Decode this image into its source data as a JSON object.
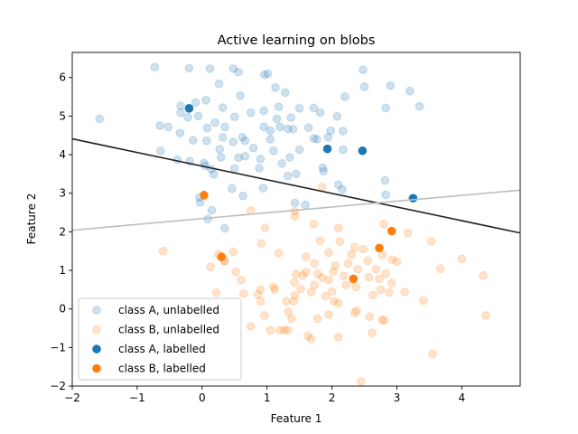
{
  "chart_data": {
    "type": "scatter",
    "title": "Active learning on blobs",
    "xlabel": "Feature 1",
    "ylabel": "Feature 2",
    "xlim": [
      -2,
      4.9
    ],
    "ylim": [
      -2,
      6.65
    ],
    "xticks": [
      -2,
      -1,
      0,
      1,
      2,
      3,
      4
    ],
    "yticks": [
      -2,
      -1,
      0,
      1,
      2,
      3,
      4,
      5,
      6
    ],
    "grid": false,
    "legend_position": "lower-left",
    "series": [
      {
        "name": "class A, unlabelled",
        "color": "#1f77b4",
        "alpha": 0.22,
        "points": [
          [
            -1.58,
            4.93
          ],
          [
            -0.73,
            6.27
          ],
          [
            -0.2,
            6.24
          ],
          [
            0.12,
            6.23
          ],
          [
            0.48,
            6.23
          ],
          [
            0.56,
            6.14
          ],
          [
            0.96,
            6.07
          ],
          [
            1.01,
            6.1
          ],
          [
            2.48,
            6.2
          ],
          [
            2.5,
            5.76
          ],
          [
            2.9,
            5.79
          ],
          [
            3.2,
            5.65
          ],
          [
            3.35,
            5.25
          ],
          [
            2.83,
            5.21
          ],
          [
            0.26,
            5.84
          ],
          [
            0.59,
            5.53
          ],
          [
            1.13,
            5.74
          ],
          [
            1.28,
            5.61
          ],
          [
            2.2,
            5.5
          ],
          [
            -0.33,
            5.27
          ],
          [
            -0.1,
            5.35
          ],
          [
            0.06,
            5.41
          ],
          [
            0.32,
            5.22
          ],
          [
            0.75,
            5.09
          ],
          [
            0.95,
            5.14
          ],
          [
            1.18,
            5.24
          ],
          [
            1.5,
            5.2
          ],
          [
            1.72,
            5.21
          ],
          [
            1.82,
            5.09
          ],
          [
            2.08,
            4.99
          ],
          [
            -0.33,
            5.09
          ],
          [
            -0.22,
            4.97
          ],
          [
            -0.06,
            5.0
          ],
          [
            0.2,
            4.83
          ],
          [
            0.5,
            4.98
          ],
          [
            1.15,
            4.93
          ],
          [
            1.37,
            4.96
          ],
          [
            -0.65,
            4.75
          ],
          [
            -0.52,
            4.72
          ],
          [
            0.08,
            4.69
          ],
          [
            0.35,
            4.72
          ],
          [
            0.62,
            4.45
          ],
          [
            0.95,
            4.72
          ],
          [
            1.05,
            4.62
          ],
          [
            1.2,
            4.72
          ],
          [
            1.4,
            4.66
          ],
          [
            1.64,
            4.7
          ],
          [
            1.77,
            4.4
          ],
          [
            1.98,
            4.62
          ],
          [
            2.17,
            4.61
          ],
          [
            -0.14,
            4.37
          ],
          [
            0.07,
            4.36
          ],
          [
            0.32,
            4.45
          ],
          [
            0.48,
            4.33
          ],
          [
            0.66,
            4.36
          ],
          [
            1.05,
            4.4
          ],
          [
            1.32,
            4.67
          ],
          [
            1.72,
            4.42
          ],
          [
            1.94,
            4.45
          ],
          [
            -0.34,
            4.56
          ],
          [
            0.27,
            4.14
          ],
          [
            0.29,
            3.93
          ],
          [
            0.03,
            3.78
          ],
          [
            0.66,
            3.96
          ],
          [
            0.9,
            3.89
          ],
          [
            1.1,
            4.1
          ],
          [
            1.35,
            3.93
          ],
          [
            1.5,
            4.13
          ],
          [
            2.17,
            4.13
          ],
          [
            -0.64,
            4.1
          ],
          [
            0.56,
            3.92
          ],
          [
            0.79,
            4.17
          ],
          [
            -0.38,
            3.87
          ],
          [
            -0.19,
            3.83
          ],
          [
            0.05,
            3.71
          ],
          [
            0.14,
            3.62
          ],
          [
            0.18,
            3.49
          ],
          [
            0.5,
            3.64
          ],
          [
            0.88,
            3.65
          ],
          [
            1.23,
            3.77
          ],
          [
            1.86,
            3.66
          ],
          [
            1.87,
            3.57
          ],
          [
            1.32,
            3.45
          ],
          [
            0.46,
            3.12
          ],
          [
            0.63,
            2.93
          ],
          [
            0.94,
            3.13
          ],
          [
            1.45,
            3.5
          ],
          [
            2.1,
            3.22
          ],
          [
            2.16,
            3.1
          ],
          [
            2.82,
            3.33
          ],
          [
            2.83,
            2.96
          ],
          [
            1.43,
            2.75
          ],
          [
            1.59,
            2.7
          ],
          [
            -0.04,
            2.89
          ],
          [
            -0.03,
            2.76
          ],
          [
            0.15,
            2.56
          ],
          [
            0.09,
            2.33
          ],
          [
            0.35,
            2.09
          ]
        ]
      },
      {
        "name": "class B, unlabelled",
        "color": "#ff7f0e",
        "alpha": 0.22,
        "points": [
          [
            -0.6,
            1.5
          ],
          [
            0.25,
            1.42
          ],
          [
            0.35,
            1.24
          ],
          [
            0.48,
            1.48
          ],
          [
            0.52,
            0.97
          ],
          [
            0.13,
            1.09
          ],
          [
            0.22,
            0.42
          ],
          [
            0.64,
            0.4
          ],
          [
            0.75,
            2.55
          ],
          [
            0.97,
            2.1
          ],
          [
            0.91,
            1.7
          ],
          [
            1.18,
            1.45
          ],
          [
            1.43,
            2.53
          ],
          [
            1.43,
            2.4
          ],
          [
            1.6,
            1.35
          ],
          [
            1.73,
            1.18
          ],
          [
            1.95,
            1.46
          ],
          [
            1.82,
            1.77
          ],
          [
            1.85,
            3.16
          ],
          [
            1.72,
            2.2
          ],
          [
            2.1,
            2.1
          ],
          [
            2.12,
            1.75
          ],
          [
            2.35,
            1.6
          ],
          [
            2.48,
            1.55
          ],
          [
            2.3,
            1.41
          ],
          [
            2.55,
            1.25
          ],
          [
            2.68,
            1.03
          ],
          [
            2.78,
            1.4
          ],
          [
            2.93,
            1.28
          ],
          [
            3.0,
            1.23
          ],
          [
            3.17,
            1.97
          ],
          [
            2.8,
            2.2
          ],
          [
            3.53,
            1.75
          ],
          [
            3.67,
            1.04
          ],
          [
            4.0,
            1.3
          ],
          [
            4.33,
            0.87
          ],
          [
            4.37,
            -0.17
          ],
          [
            3.55,
            -1.17
          ],
          [
            3.41,
            0.22
          ],
          [
            3.12,
            0.44
          ],
          [
            2.88,
            0.43
          ],
          [
            2.75,
            0.5
          ],
          [
            2.63,
            0.36
          ],
          [
            2.57,
            0.82
          ],
          [
            2.92,
            0.67
          ],
          [
            2.73,
            0.78
          ],
          [
            2.83,
            0.92
          ],
          [
            2.4,
            1.03
          ],
          [
            2.25,
            1.18
          ],
          [
            2.18,
            0.86
          ],
          [
            2.05,
            1.12
          ],
          [
            2.02,
            0.97
          ],
          [
            1.95,
            0.75
          ],
          [
            1.85,
            0.81
          ],
          [
            1.78,
            0.91
          ],
          [
            1.6,
            0.96
          ],
          [
            1.55,
            0.87
          ],
          [
            1.45,
            0.9
          ],
          [
            1.42,
            0.69
          ],
          [
            1.43,
            0.35
          ],
          [
            1.41,
            0.2
          ],
          [
            1.52,
            0.52
          ],
          [
            1.68,
            0.44
          ],
          [
            1.73,
            0.62
          ],
          [
            1.9,
            0.33
          ],
          [
            2.0,
            0.45
          ],
          [
            2.22,
            0.62
          ],
          [
            2.37,
            0.57
          ],
          [
            2.58,
            -0.2
          ],
          [
            2.38,
            -0.04
          ],
          [
            2.35,
            -0.1
          ],
          [
            2.1,
            0.15
          ],
          [
            2.03,
            0.2
          ],
          [
            1.78,
            -0.25
          ],
          [
            1.3,
            0.2
          ],
          [
            1.33,
            -0.08
          ],
          [
            1.38,
            -0.25
          ],
          [
            1.27,
            -0.55
          ],
          [
            1.2,
            -0.55
          ],
          [
            1.05,
            -0.55
          ],
          [
            0.96,
            -0.17
          ],
          [
            0.9,
            0.2
          ],
          [
            0.9,
            0.5
          ],
          [
            1.12,
            0.5
          ],
          [
            1.1,
            0.57
          ],
          [
            0.86,
            0.38
          ],
          [
            0.6,
            0.75
          ],
          [
            0.75,
            -0.45
          ],
          [
            1.63,
            -0.7
          ],
          [
            1.68,
            -0.78
          ],
          [
            2.1,
            -0.73
          ],
          [
            2.62,
            -0.62
          ],
          [
            2.78,
            -0.28
          ],
          [
            2.8,
            -0.3
          ],
          [
            2.45,
            -1.88
          ],
          [
            1.95,
            -0.15
          ],
          [
            1.32,
            -0.55
          ],
          [
            0.34,
            1.24
          ]
        ]
      },
      {
        "name": "class A, labelled",
        "color": "#1f77b4",
        "alpha": 1,
        "points": [
          [
            -0.2,
            5.2
          ],
          [
            1.93,
            4.15
          ],
          [
            2.47,
            4.1
          ],
          [
            3.25,
            2.87
          ]
        ]
      },
      {
        "name": "class B, labelled",
        "color": "#ff7f0e",
        "alpha": 1,
        "points": [
          [
            0.03,
            2.95
          ],
          [
            0.3,
            1.35
          ],
          [
            2.73,
            1.58
          ],
          [
            2.92,
            2.02
          ],
          [
            2.33,
            0.78
          ]
        ]
      }
    ],
    "lines": [
      {
        "color": "#222222",
        "points": [
          [
            -2,
            4.41
          ],
          [
            4.9,
            1.97
          ]
        ]
      },
      {
        "color": "#bdbdbd",
        "points": [
          [
            -2,
            2.04
          ],
          [
            4.9,
            3.08
          ]
        ]
      }
    ]
  }
}
